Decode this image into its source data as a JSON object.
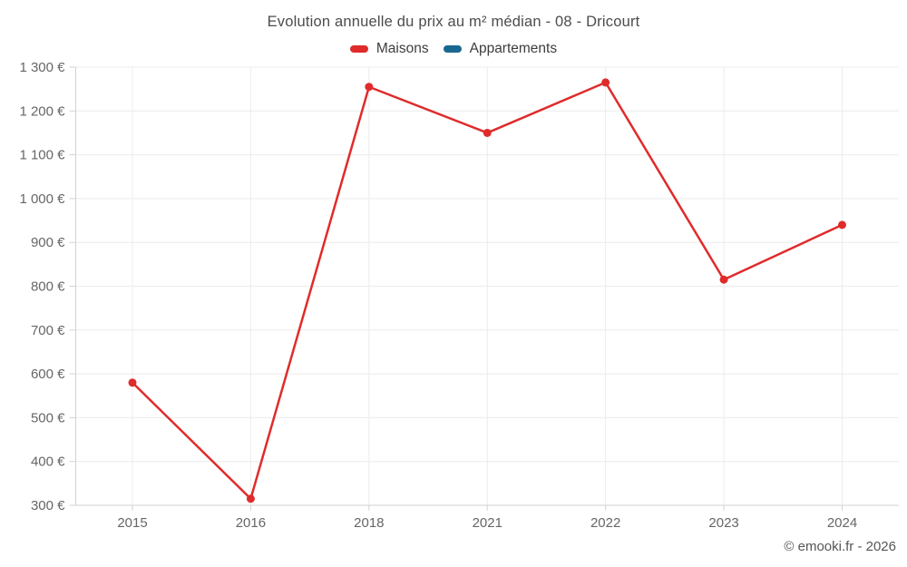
{
  "chart_data": {
    "type": "line",
    "title": "Evolution annuelle du prix au m² médian - 08 - Dricourt",
    "categories": [
      "2015",
      "2016",
      "2018",
      "2021",
      "2022",
      "2023",
      "2024"
    ],
    "series": [
      {
        "name": "Maisons",
        "color": "#e02b2b",
        "values": [
          580,
          315,
          1255,
          1150,
          1265,
          815,
          940
        ]
      },
      {
        "name": "Appartements",
        "color": "#19688f",
        "values": []
      }
    ],
    "xlabel": "",
    "ylabel": "",
    "ylim": [
      300,
      1300
    ],
    "ytick_step": 100,
    "ytick_suffix": " €",
    "grid": true,
    "legend_position": "top",
    "marker_radius": 4.5,
    "line_width": 2.5
  },
  "footer": {
    "copyright": "© emooki.fr - 2026"
  }
}
